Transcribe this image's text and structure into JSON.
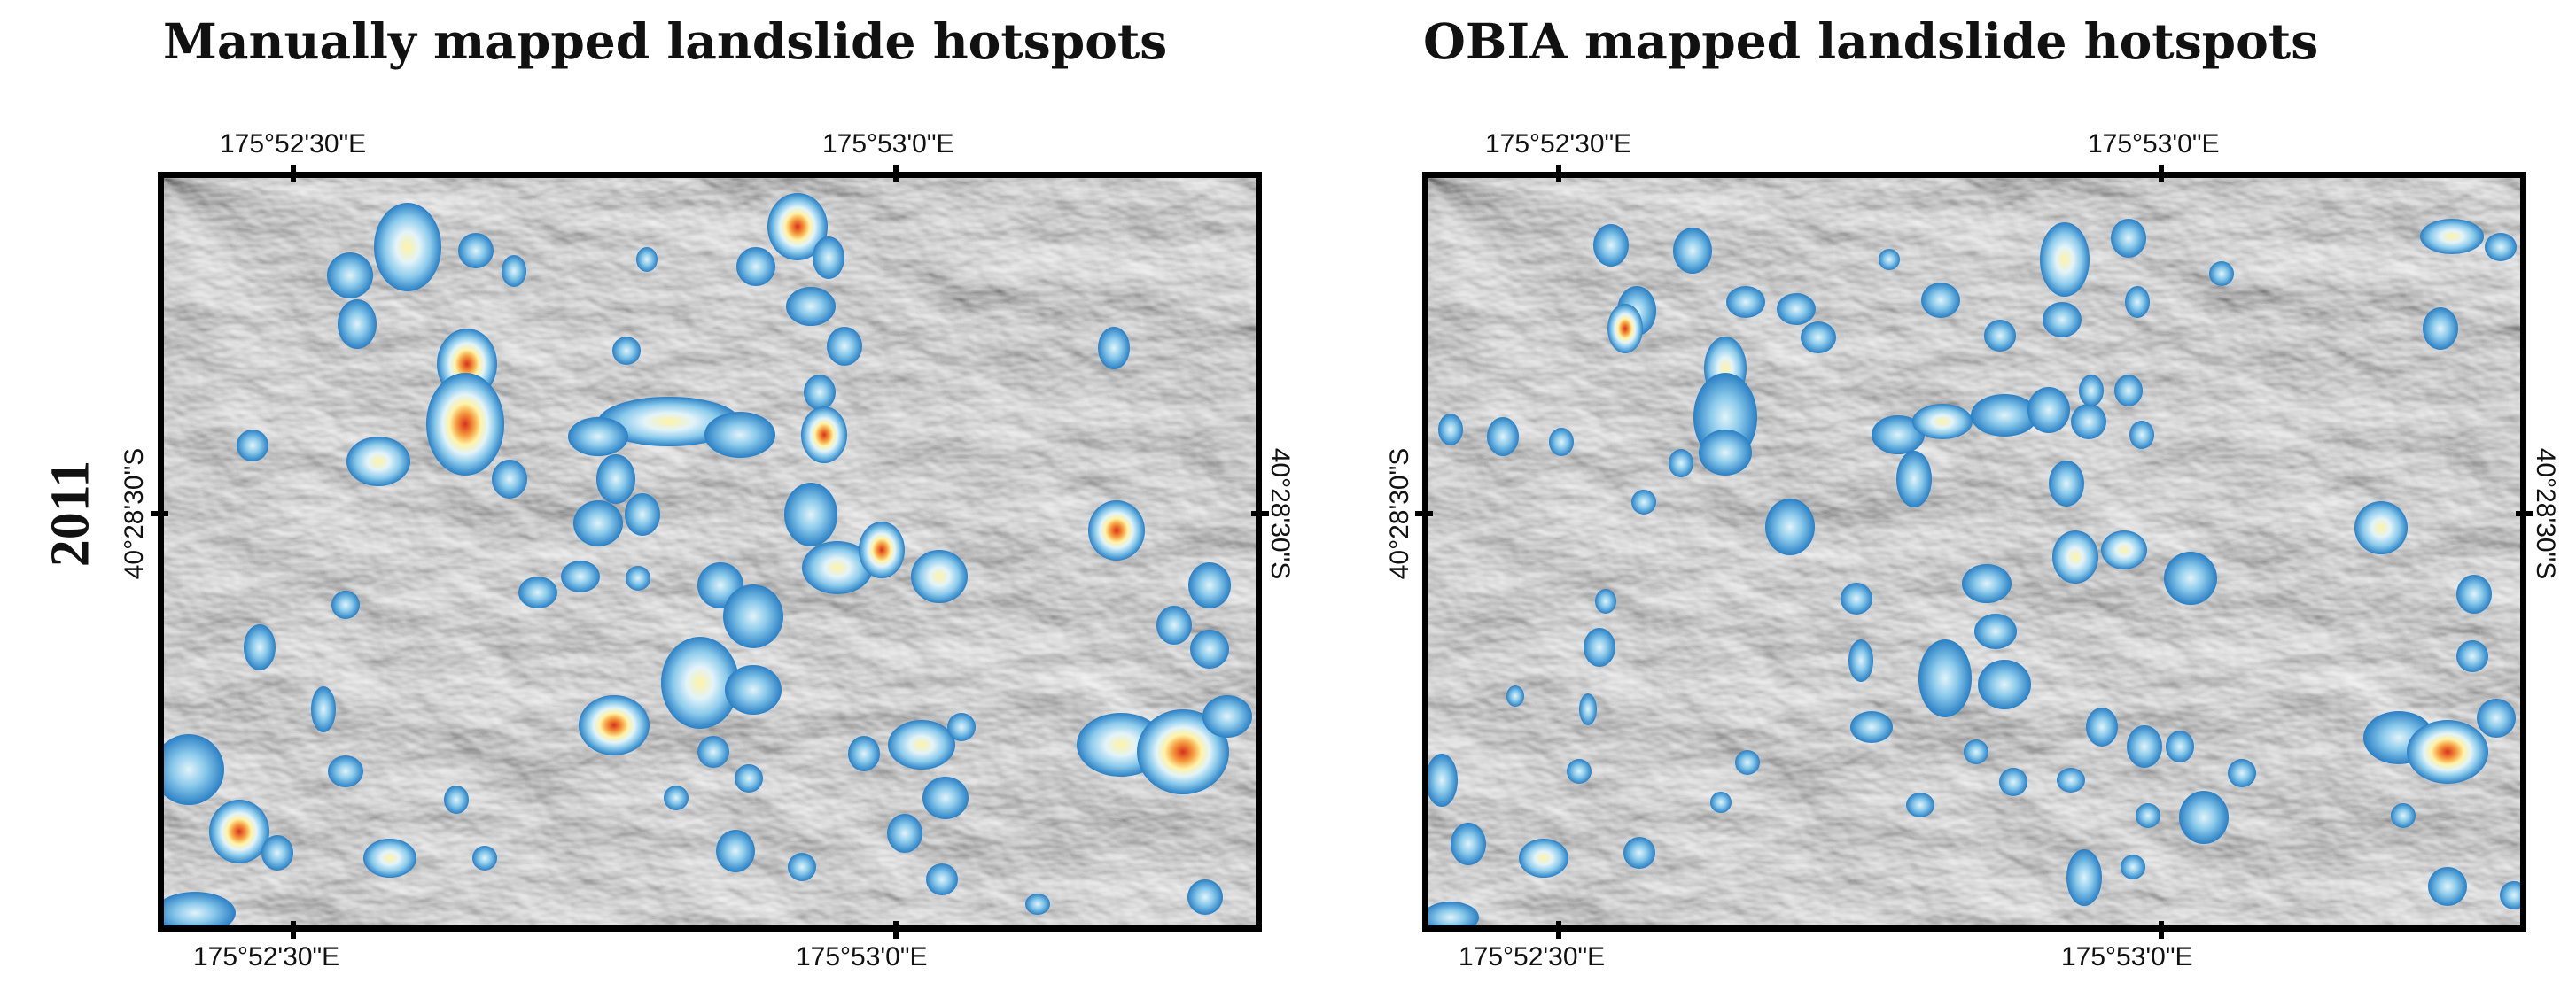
{
  "row_label": "2011",
  "panels": [
    {
      "id": "manual",
      "title": "Manually mapped landslide hotspots",
      "lon_top": [
        "175°52'30\"E",
        "175°53'0\"E"
      ],
      "lon_bottom": [
        "175°52'30\"E",
        "175°53'0\"E"
      ],
      "lat_left": "40°28'30\"S",
      "lat_right": "40°28'30\"S"
    },
    {
      "id": "obia",
      "title": "OBIA mapped landslide hotspots",
      "lon_top": [
        "175°52'30\"E",
        "175°53'0\"E"
      ],
      "lon_bottom": [
        "175°52'30\"E",
        "175°53'0\"E"
      ],
      "lat_left": "40°28'30\"S",
      "lat_right": "40°28'30\"S"
    }
  ],
  "colors": {
    "hotspot_outer": "#2a7fc4",
    "hotspot_mid": "#8ccbec",
    "hotspot_light": "#e2f3fa",
    "hotspot_yellow": "#fff3a6",
    "hotspot_orange": "#f59a3d",
    "hotspot_red": "#d7301f",
    "hillshade_light": "#ececec",
    "hillshade_dark": "#4a4a4a",
    "frame": "#000000"
  }
}
